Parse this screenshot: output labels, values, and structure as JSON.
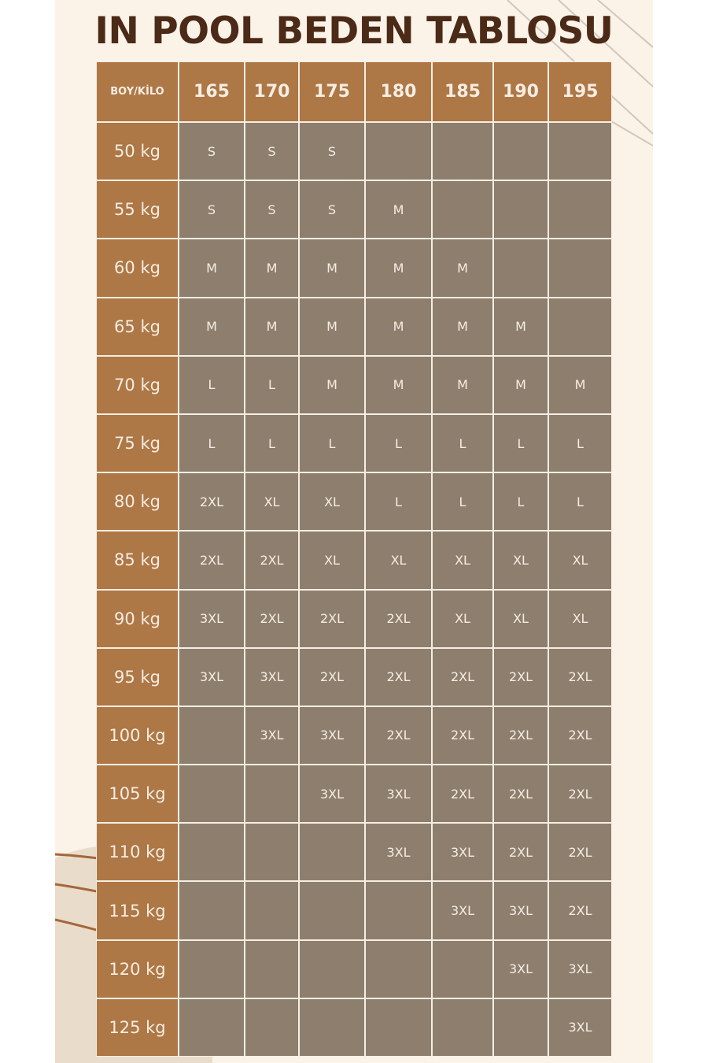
{
  "title": "IN POOL BEDEN TABLOSU",
  "corner": "BOY/KİLO",
  "heights": [
    "165",
    "170",
    "175",
    "180",
    "185",
    "190",
    "195"
  ],
  "rows": [
    {
      "w": "50 kg",
      "s": [
        "S",
        "S",
        "S",
        "",
        "",
        "",
        ""
      ]
    },
    {
      "w": "55 kg",
      "s": [
        "S",
        "S",
        "S",
        "M",
        "",
        "",
        ""
      ]
    },
    {
      "w": "60 kg",
      "s": [
        "M",
        "M",
        "M",
        "M",
        "M",
        "",
        ""
      ]
    },
    {
      "w": "65 kg",
      "s": [
        "M",
        "M",
        "M",
        "M",
        "M",
        "M",
        ""
      ]
    },
    {
      "w": "70 kg",
      "s": [
        "L",
        "L",
        "M",
        "M",
        "M",
        "M",
        "M"
      ]
    },
    {
      "w": "75 kg",
      "s": [
        "L",
        "L",
        "L",
        "L",
        "L",
        "L",
        "L"
      ]
    },
    {
      "w": "80 kg",
      "s": [
        "2XL",
        "XL",
        "XL",
        "L",
        "L",
        "L",
        "L"
      ]
    },
    {
      "w": "85 kg",
      "s": [
        "2XL",
        "2XL",
        "XL",
        "XL",
        "XL",
        "XL",
        "XL"
      ]
    },
    {
      "w": "90 kg",
      "s": [
        "3XL",
        "2XL",
        "2XL",
        "2XL",
        "XL",
        "XL",
        "XL"
      ]
    },
    {
      "w": "95 kg",
      "s": [
        "3XL",
        "3XL",
        "2XL",
        "2XL",
        "2XL",
        "2XL",
        "2XL"
      ]
    },
    {
      "w": "100 kg",
      "s": [
        "",
        "3XL",
        "3XL",
        "2XL",
        "2XL",
        "2XL",
        "2XL"
      ]
    },
    {
      "w": "105 kg",
      "s": [
        "",
        "",
        "3XL",
        "3XL",
        "2XL",
        "2XL",
        "2XL"
      ]
    },
    {
      "w": "110 kg",
      "s": [
        "",
        "",
        "",
        "3XL",
        "3XL",
        "2XL",
        "2XL"
      ]
    },
    {
      "w": "115 kg",
      "s": [
        "",
        "",
        "",
        "",
        "3XL",
        "3XL",
        "2XL"
      ]
    },
    {
      "w": "120 kg",
      "s": [
        "",
        "",
        "",
        "",
        "",
        "3XL",
        "3XL"
      ]
    },
    {
      "w": "125 kg",
      "s": [
        "",
        "",
        "",
        "",
        "",
        "",
        "3XL"
      ]
    }
  ],
  "colors": {
    "header": "#ad7746",
    "cell": "#8d7e6e",
    "title": "#4b2a17",
    "background": "#fbf3e8"
  }
}
